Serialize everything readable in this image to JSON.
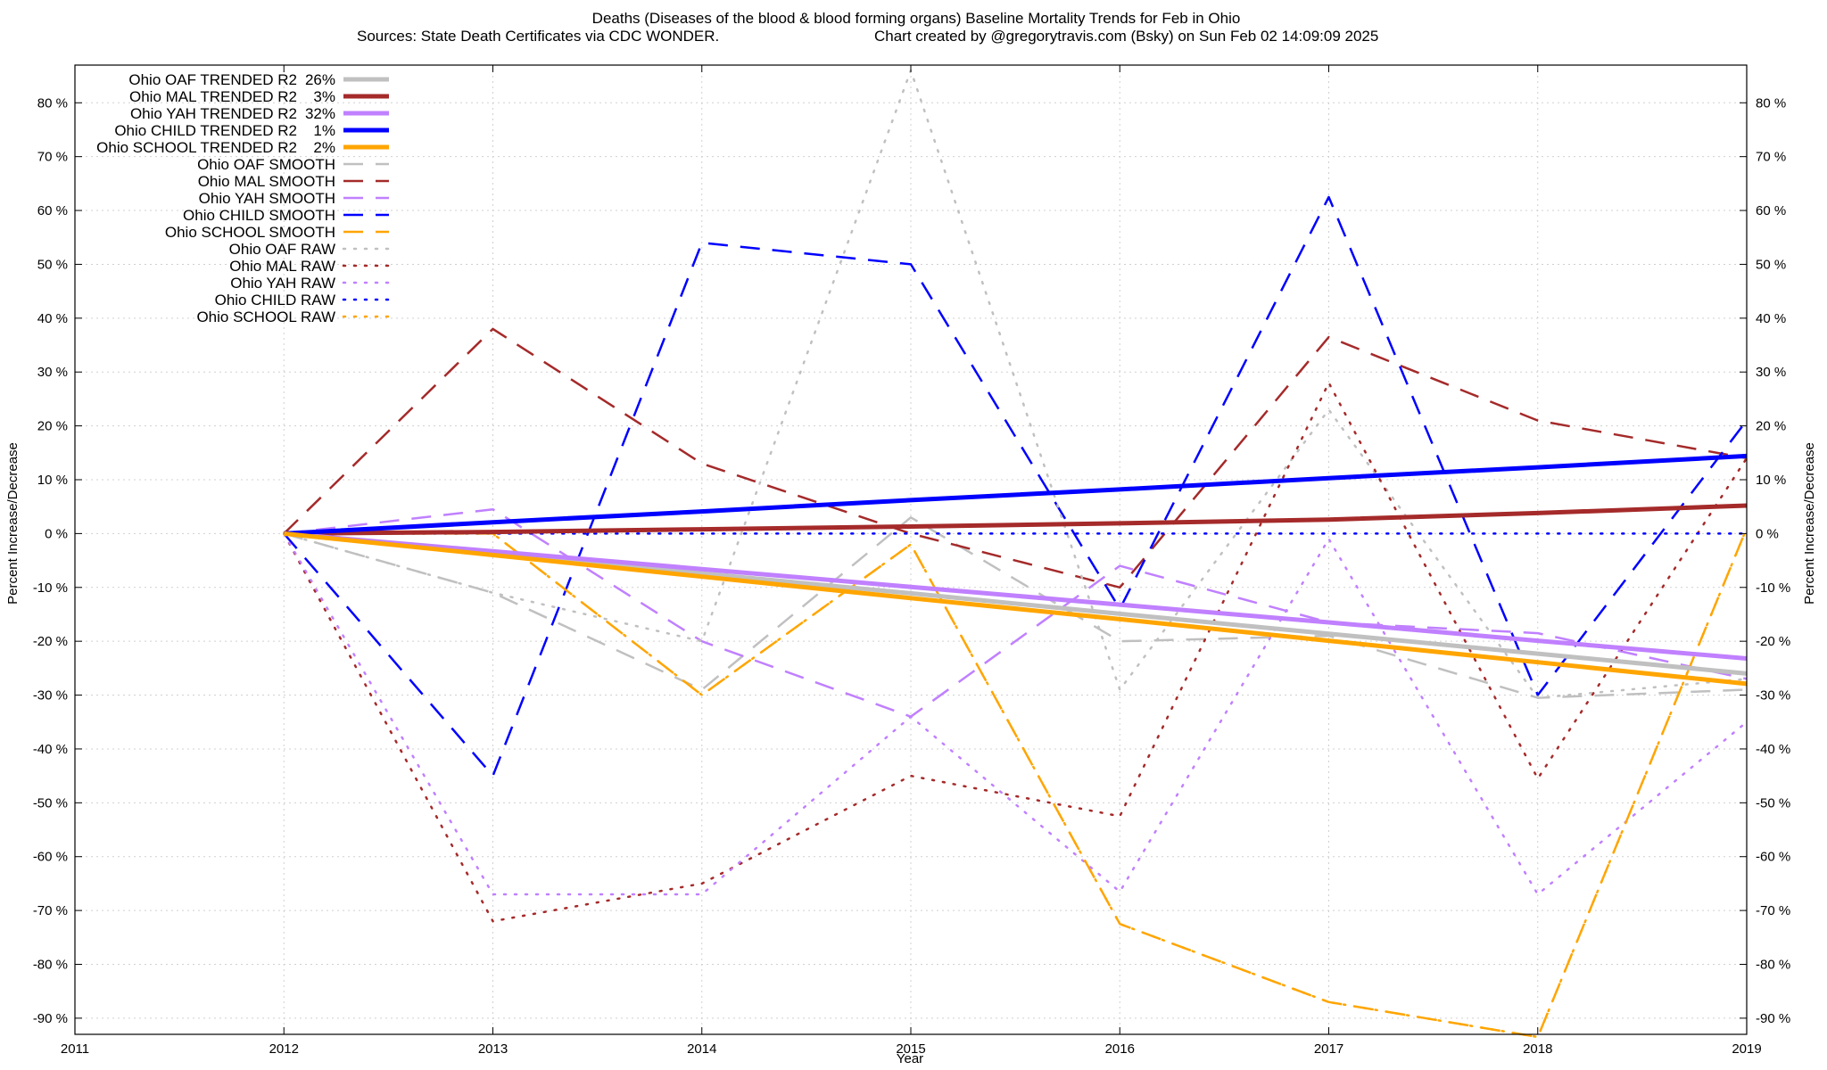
{
  "chart_data": {
    "type": "line",
    "title": "Deaths (Diseases of the blood & blood forming organs)  Baseline Mortality Trends for Feb in Ohio",
    "subtitle_left": "Sources: State Death Certificates via CDC WONDER.",
    "subtitle_right": "Chart created by @gregorytravis.com (Bsky) on Sun Feb 02 14:09:09 2025",
    "xlabel": "Year",
    "ylabel_left": "Percent Increase/Decrease",
    "ylabel_right": "Percent Increase/Decrease",
    "xlim": [
      2011,
      2019
    ],
    "ylim": [
      -93,
      87
    ],
    "x_ticks": [
      "2011",
      "2012",
      "2013",
      "2014",
      "2015",
      "2016",
      "2017",
      "2018",
      "2019"
    ],
    "y_ticks": [
      80,
      70,
      60,
      50,
      40,
      30,
      20,
      10,
      0,
      -10,
      -20,
      -30,
      -40,
      -50,
      -60,
      -70,
      -80,
      -90
    ],
    "y_tick_suffix": " %",
    "grid": true,
    "legend_position": "top-left",
    "x": [
      2012,
      2013,
      2014,
      2015,
      2016,
      2017,
      2018,
      2019
    ],
    "series": [
      {
        "name": "Ohio OAF TRENDED R2",
        "r2": "26%",
        "style": "solid",
        "color": "#c0c0c0",
        "width": 5,
        "values": [
          0,
          -3.7,
          -7.4,
          -11.1,
          -14.9,
          -18.6,
          -22.3,
          -26.0
        ]
      },
      {
        "name": "Ohio MAL TRENDED R2",
        "r2": "3%",
        "style": "solid",
        "color": "#a52a2a",
        "width": 5,
        "values": [
          0,
          0.3,
          0.8,
          1.3,
          1.9,
          2.6,
          3.8,
          5.2
        ]
      },
      {
        "name": "Ohio YAH TRENDED R2",
        "r2": "32%",
        "style": "solid",
        "color": "#c080ff",
        "width": 5,
        "values": [
          0,
          -3.3,
          -6.6,
          -9.9,
          -13.2,
          -16.5,
          -19.9,
          -23.2
        ]
      },
      {
        "name": "Ohio CHILD TRENDED R2",
        "r2": "1%",
        "style": "solid",
        "color": "#0000ff",
        "width": 5,
        "values": [
          0,
          2.1,
          4.1,
          6.2,
          8.2,
          10.3,
          12.3,
          14.4
        ]
      },
      {
        "name": "Ohio SCHOOL TRENDED R2",
        "r2": "2%",
        "style": "solid",
        "color": "#ffa500",
        "width": 5,
        "values": [
          0,
          -4.0,
          -8.0,
          -12.0,
          -15.9,
          -19.9,
          -23.9,
          -27.9
        ]
      },
      {
        "name": "Ohio OAF SMOOTH",
        "style": "dash",
        "color": "#c0c0c0",
        "width": 2.5,
        "values": [
          0,
          -11,
          -29,
          3,
          -20,
          -19,
          -30.5,
          -29
        ]
      },
      {
        "name": "Ohio MAL SMOOTH",
        "style": "dash",
        "color": "#a52a2a",
        "width": 2.5,
        "values": [
          0,
          38,
          13,
          0,
          -10,
          36.5,
          21,
          14
        ]
      },
      {
        "name": "Ohio YAH SMOOTH",
        "style": "dash",
        "color": "#c080ff",
        "width": 2.5,
        "values": [
          0,
          4.5,
          -20,
          -34,
          -6,
          -16.5,
          -18.5,
          -27
        ]
      },
      {
        "name": "Ohio CHILD SMOOTH",
        "style": "dash",
        "color": "#0000ff",
        "width": 2.5,
        "values": [
          0,
          -45,
          54,
          50,
          -14,
          62.5,
          -30,
          21
        ]
      },
      {
        "name": "Ohio SCHOOL SMOOTH",
        "style": "dash",
        "color": "#ffa500",
        "width": 2.5,
        "values": [
          0,
          0,
          -30,
          -2,
          -72.5,
          -87,
          -93.5,
          1
        ]
      },
      {
        "name": "Ohio OAF RAW",
        "style": "dot",
        "color": "#c0c0c0",
        "width": 2.5,
        "values": [
          0,
          -11,
          -20,
          86,
          -29,
          23,
          -30.5,
          -27
        ]
      },
      {
        "name": "Ohio MAL RAW",
        "style": "dot",
        "color": "#a52a2a",
        "width": 2.5,
        "values": [
          0,
          -72,
          -65,
          -45,
          -52.5,
          28,
          -45.5,
          14
        ]
      },
      {
        "name": "Ohio YAH RAW",
        "style": "dot",
        "color": "#c080ff",
        "width": 2.5,
        "values": [
          0,
          -67,
          -67,
          -34,
          -66.5,
          -1,
          -67,
          -35
        ]
      },
      {
        "name": "Ohio CHILD RAW",
        "style": "dot",
        "color": "#0000ff",
        "width": 2.5,
        "values": [
          0,
          0,
          0,
          0,
          0,
          0,
          0,
          0
        ]
      },
      {
        "name": "Ohio SCHOOL RAW",
        "style": "dot",
        "color": "#ffa500",
        "width": 2.5,
        "values": [
          0,
          0,
          -30,
          -2,
          -72.5,
          -87,
          -93.5,
          1
        ]
      }
    ]
  }
}
